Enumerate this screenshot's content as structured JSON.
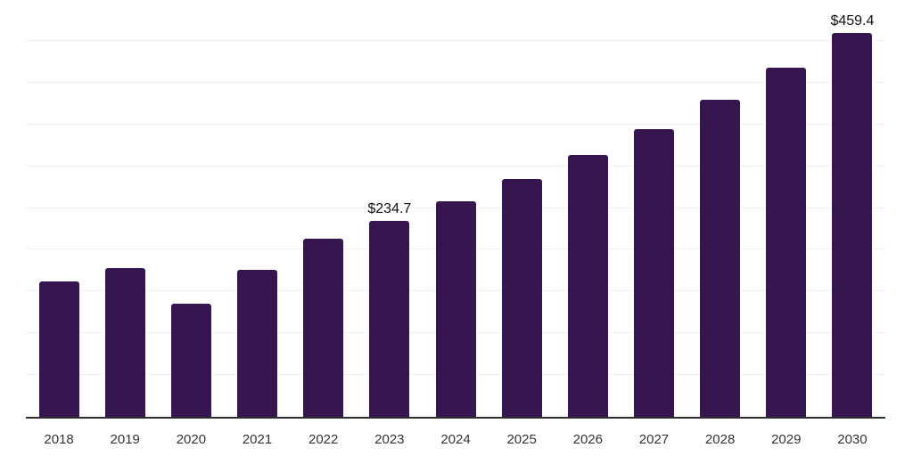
{
  "chart_data": {
    "type": "bar",
    "title": "",
    "xlabel": "",
    "ylabel": "",
    "categories": [
      "2018",
      "2019",
      "2020",
      "2021",
      "2022",
      "2023",
      "2024",
      "2025",
      "2026",
      "2027",
      "2028",
      "2029",
      "2030"
    ],
    "values": [
      161.9,
      178.0,
      135.4,
      175.7,
      213.3,
      234.7,
      258.4,
      284.5,
      313.2,
      344.7,
      379.5,
      417.7,
      459.4
    ],
    "data_labels": [
      {
        "category": "2023",
        "text": "$234.7"
      },
      {
        "category": "2030",
        "text": "$459.4"
      }
    ],
    "ylim": [
      0,
      500
    ],
    "gridline_step": 50,
    "grid": "horizontal",
    "legend": "none",
    "y_tick_labels_visible": false,
    "colors": {
      "bar": "#36164e",
      "background": "#ffffff",
      "gridline": "#f1f1f1",
      "axis_line": "#2e2e2e",
      "tick_label": "#333333",
      "data_label": "#111111"
    }
  }
}
